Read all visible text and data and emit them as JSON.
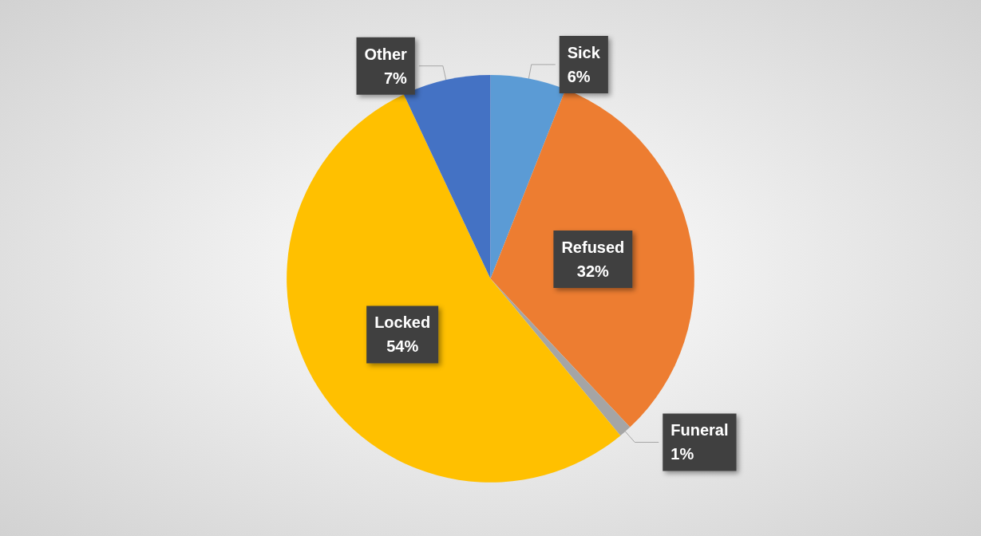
{
  "chart_data": {
    "type": "pie",
    "categories": [
      "Sick",
      "Refused",
      "Funeral",
      "Locked",
      "Other"
    ],
    "values": [
      6,
      32,
      1,
      54,
      7
    ],
    "colors": [
      "#5b9bd5",
      "#ed7d31",
      "#a5a5a5",
      "#ffc000",
      "#4472c4"
    ],
    "value_labels": [
      "6%",
      "32%",
      "1%",
      "54%",
      "7%"
    ],
    "legend": false
  }
}
